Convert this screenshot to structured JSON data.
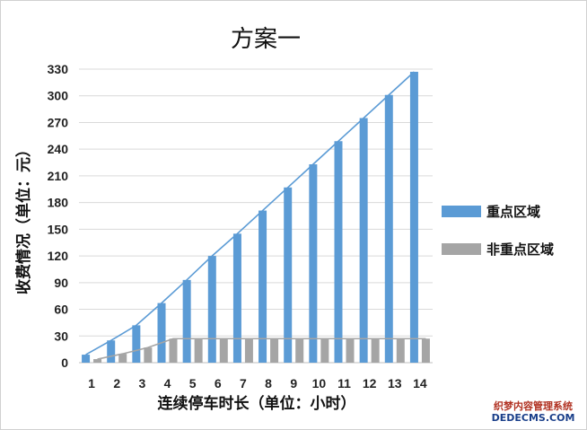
{
  "chart_data": {
    "type": "bar",
    "title": "方案一",
    "xlabel": "连续停车时长（单位：小时）",
    "ylabel": "收费情况（单位：元）",
    "categories": [
      "1",
      "2",
      "3",
      "4",
      "5",
      "6",
      "7",
      "8",
      "9",
      "10",
      "11",
      "12",
      "13",
      "14"
    ],
    "yticks": [
      "0",
      "30",
      "60",
      "90",
      "120",
      "150",
      "180",
      "210",
      "240",
      "270",
      "300",
      "330"
    ],
    "ylim": [
      0,
      330
    ],
    "grid": true,
    "legend_position": "right",
    "series": [
      {
        "name": "重点区域",
        "color": "#5b9bd5",
        "values": [
          9,
          25,
          42,
          67,
          93,
          120,
          145,
          171,
          197,
          223,
          249,
          275,
          301,
          327
        ]
      },
      {
        "name": "非重点区域",
        "color": "#a5a5a5",
        "values": [
          4,
          10,
          17,
          27,
          27,
          27,
          27,
          27,
          27,
          27,
          27,
          27,
          27,
          27
        ]
      }
    ]
  },
  "watermark": {
    "line1": "织梦内容管理系统",
    "line2": "DEDECMS.COM"
  }
}
